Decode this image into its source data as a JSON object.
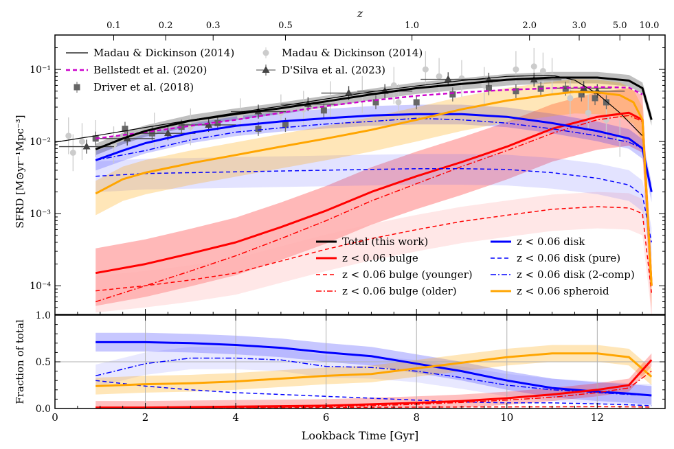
{
  "chart_data": [
    {
      "panel": "top",
      "type": "line",
      "ylabel": "SFRD [M⊙yr⁻¹Mpc⁻³]",
      "yscale": "log",
      "ylim": [
        4e-05,
        0.3
      ],
      "yticks": [
        0.0001,
        0.001,
        0.01,
        0.1
      ],
      "ytick_labels": [
        "10⁻⁴",
        "10⁻³",
        "10⁻²",
        "10⁻¹"
      ],
      "xlim": [
        0,
        13.5
      ],
      "top_axis": {
        "label": "z",
        "ticks": [
          {
            "t": 1.3,
            "label": "0.1"
          },
          {
            "t": 2.45,
            "label": "0.2"
          },
          {
            "t": 3.5,
            "label": "0.3"
          },
          {
            "t": 5.1,
            "label": "0.5"
          },
          {
            "t": 7.9,
            "label": "1.0"
          },
          {
            "t": 10.5,
            "label": "2.0"
          },
          {
            "t": 11.6,
            "label": "3.0"
          },
          {
            "t": 12.5,
            "label": "5.0"
          },
          {
            "t": 13.15,
            "label": "10.0"
          }
        ]
      },
      "series": [
        {
          "name": "Madau & Dickinson (2014)",
          "style": "fit",
          "color": "#000000",
          "x": [
            0,
            1,
            2,
            3,
            4,
            5,
            6,
            7,
            8,
            9,
            10,
            11,
            11.5,
            12,
            12.5,
            13
          ],
          "y": [
            0.0098,
            0.0123,
            0.0157,
            0.0198,
            0.025,
            0.031,
            0.039,
            0.049,
            0.059,
            0.07,
            0.08,
            0.083,
            0.071,
            0.046,
            0.025,
            0.012
          ]
        },
        {
          "name": "Bellstedt et al. (2020)",
          "style": "dashed",
          "color": "#cc00cc",
          "x": [
            0.9,
            2,
            3,
            4,
            5,
            6,
            7,
            8,
            9,
            10,
            11,
            12,
            12.7,
            13
          ],
          "y": [
            0.011,
            0.0135,
            0.0165,
            0.02,
            0.025,
            0.031,
            0.037,
            0.043,
            0.048,
            0.052,
            0.055,
            0.057,
            0.056,
            0.045
          ]
        },
        {
          "name": "Total (this work)",
          "style": "thick",
          "color": "#000000",
          "x": [
            0.9,
            1.5,
            2,
            3,
            4,
            5,
            6,
            7,
            8,
            9,
            10,
            11,
            12,
            12.7,
            13,
            13.2
          ],
          "y": [
            0.0078,
            0.011,
            0.014,
            0.0195,
            0.024,
            0.029,
            0.036,
            0.045,
            0.055,
            0.063,
            0.072,
            0.077,
            0.077,
            0.07,
            0.055,
            0.02
          ]
        },
        {
          "name": "z < 0.06 bulge",
          "style": "thick",
          "color": "#ff0000",
          "x": [
            0.9,
            2,
            3,
            4,
            5,
            6,
            7,
            8,
            9,
            10,
            11,
            12,
            12.7,
            13,
            13.2
          ],
          "y": [
            0.00015,
            0.0002,
            0.00028,
            0.0004,
            0.00065,
            0.0011,
            0.002,
            0.0033,
            0.0052,
            0.0085,
            0.015,
            0.022,
            0.025,
            0.02,
            0.0001
          ]
        },
        {
          "name": "z < 0.06 bulge (younger)",
          "style": "dashed",
          "color": "#ff0000",
          "x": [
            0.9,
            2,
            3,
            4,
            5,
            6,
            7,
            8,
            9,
            10,
            11,
            12,
            12.7,
            13,
            13.2
          ],
          "y": [
            8.5e-05,
            0.0001,
            0.00012,
            0.00015,
            0.00022,
            0.00032,
            0.00045,
            0.0006,
            0.00078,
            0.00095,
            0.00115,
            0.00125,
            0.0012,
            0.001,
            8e-05
          ]
        },
        {
          "name": "z < 0.06 bulge (older)",
          "style": "dashdot",
          "color": "#ff0000",
          "x": [
            0.9,
            2,
            3,
            4,
            5,
            6,
            7,
            8,
            9,
            10,
            11,
            12,
            12.7,
            13,
            13.2
          ],
          "y": [
            6e-05,
            0.0001,
            0.00016,
            0.00026,
            0.00045,
            0.0008,
            0.0015,
            0.0026,
            0.0045,
            0.0075,
            0.013,
            0.02,
            0.023,
            0.019,
            0.0001
          ]
        },
        {
          "name": "z < 0.06 disk",
          "style": "thick",
          "color": "#0000ff",
          "x": [
            0.9,
            1.5,
            2,
            3,
            4,
            5,
            6,
            7,
            8,
            9,
            10,
            11,
            12,
            12.7,
            13,
            13.2
          ],
          "y": [
            0.0055,
            0.0075,
            0.0095,
            0.0132,
            0.0165,
            0.019,
            0.021,
            0.023,
            0.024,
            0.024,
            0.022,
            0.018,
            0.014,
            0.011,
            0.008,
            0.002
          ]
        },
        {
          "name": "z < 0.06 disk (pure)",
          "style": "dashed",
          "color": "#0000ff",
          "x": [
            0.9,
            2,
            3,
            4,
            5,
            6,
            7,
            8,
            9,
            10,
            11,
            12,
            12.7,
            13,
            13.2
          ],
          "y": [
            0.0033,
            0.0036,
            0.0037,
            0.0038,
            0.0039,
            0.004,
            0.0041,
            0.0042,
            0.0042,
            0.0041,
            0.0037,
            0.0031,
            0.0025,
            0.0018,
            0.0004
          ]
        },
        {
          "name": "z < 0.06 disk (2-comp)",
          "style": "dashdot",
          "color": "#0000ff",
          "x": [
            0.9,
            2,
            3,
            4,
            5,
            6,
            7,
            8,
            9,
            10,
            11,
            12,
            12.7,
            13,
            13.2
          ],
          "y": [
            0.0055,
            0.0075,
            0.0105,
            0.0135,
            0.0155,
            0.0175,
            0.019,
            0.021,
            0.02,
            0.018,
            0.015,
            0.012,
            0.0098,
            0.008,
            0.002
          ]
        },
        {
          "name": "z < 0.06 spheroid",
          "style": "thick",
          "color": "#ffa500",
          "x": [
            0.9,
            1.5,
            2,
            3,
            4,
            5,
            6,
            7,
            8,
            9,
            10,
            11,
            11.5,
            12,
            12.5,
            12.8,
            13,
            13.2
          ],
          "y": [
            0.0019,
            0.003,
            0.0037,
            0.005,
            0.0065,
            0.0085,
            0.011,
            0.0145,
            0.02,
            0.028,
            0.037,
            0.045,
            0.049,
            0.048,
            0.044,
            0.035,
            0.02,
            0.0001
          ]
        }
      ],
      "observations": [
        {
          "name": "Madau & Dickinson (2014)",
          "marker": "circle",
          "color": "#cccccc",
          "x": [
            0.3,
            0.4,
            0.6,
            0.9,
            1.3,
            2.2,
            3.0,
            4.1,
            5.0,
            5.5,
            6.1,
            6.8,
            7.5,
            7.6,
            8.2,
            8.5,
            9.0,
            9.5,
            10.2,
            10.6,
            10.8,
            11.0,
            11.4,
            11.8,
            12.2,
            12.5
          ],
          "y": [
            0.012,
            0.007,
            0.01,
            0.011,
            0.009,
            0.014,
            0.016,
            0.022,
            0.025,
            0.028,
            0.038,
            0.045,
            0.06,
            0.035,
            0.1,
            0.08,
            0.075,
            0.06,
            0.1,
            0.11,
            0.095,
            0.08,
            0.04,
            0.025,
            0.02,
            0.011
          ]
        },
        {
          "name": "Driver et al. (2018)",
          "marker": "square",
          "color": "#666666",
          "x": [
            0.9,
            1.55,
            2.15,
            2.8,
            3.6,
            4.5,
            5.1,
            5.95,
            7.1,
            8.0,
            8.8,
            9.6,
            10.2,
            10.75,
            11.3,
            11.65,
            11.95,
            12.2
          ],
          "y": [
            0.011,
            0.015,
            0.013,
            0.016,
            0.018,
            0.015,
            0.017,
            0.027,
            0.035,
            0.035,
            0.045,
            0.055,
            0.05,
            0.054,
            0.054,
            0.045,
            0.04,
            0.035
          ]
        },
        {
          "name": "D'Silva et al. (2023)",
          "marker": "triangle",
          "color": "#444444",
          "x": [
            0.7,
            1.6,
            2.5,
            3.4,
            4.5,
            5.6,
            6.5,
            7.3,
            8.7,
            9.6,
            10.6,
            11.7,
            12.0
          ],
          "y": [
            0.0085,
            0.011,
            0.013,
            0.017,
            0.026,
            0.033,
            0.047,
            0.05,
            0.073,
            0.072,
            0.072,
            0.055,
            0.05
          ]
        }
      ],
      "legend_left": [
        {
          "label": "Madau & Dickinson (2014)",
          "symbol": "line-black"
        },
        {
          "label": "Bellstedt et al. (2020)",
          "symbol": "dashed-magenta"
        },
        {
          "label": "Driver et al. (2018)",
          "symbol": "square"
        }
      ],
      "legend_mid": [
        {
          "label": "Madau & Dickinson (2014)",
          "symbol": "circle"
        },
        {
          "label": "D'Silva et al. (2023)",
          "symbol": "triangle"
        }
      ],
      "legend_bottom": [
        {
          "label": "Total (this work)",
          "series": "Total (this work)"
        },
        {
          "label": "z < 0.06 bulge",
          "series": "z < 0.06 bulge"
        },
        {
          "label": "z < 0.06 bulge (younger)",
          "series": "z < 0.06 bulge (younger)"
        },
        {
          "label": "z < 0.06 bulge (older)",
          "series": "z < 0.06 bulge (older)"
        },
        {
          "label": "z < 0.06 disk",
          "series": "z < 0.06 disk"
        },
        {
          "label": "z < 0.06 disk (pure)",
          "series": "z < 0.06 disk (pure)"
        },
        {
          "label": "z < 0.06 disk (2-comp)",
          "series": "z < 0.06 disk (2-comp)"
        },
        {
          "label": "z < 0.06 spheroid",
          "series": "z < 0.06 spheroid"
        }
      ]
    },
    {
      "panel": "bottom",
      "type": "line",
      "ylabel": "Fraction of total",
      "xlabel": "Lookback Time [Gyr]",
      "xlim": [
        0,
        13.5
      ],
      "ylim": [
        0,
        1
      ],
      "xticks": [
        0,
        2,
        4,
        6,
        8,
        10,
        12
      ],
      "yticks": [
        0.0,
        0.5,
        1.0
      ],
      "ytick_labels": [
        "0.0",
        "0.5",
        "1.0"
      ],
      "reference_line": 0.5,
      "series": [
        {
          "name": "disk",
          "style": "thick",
          "color": "#0000ff",
          "x": [
            0.9,
            2,
            3,
            4,
            5,
            6,
            7,
            8,
            9,
            10,
            11,
            12,
            12.7,
            13.2
          ],
          "y": [
            0.71,
            0.71,
            0.7,
            0.68,
            0.65,
            0.6,
            0.56,
            0.48,
            0.4,
            0.3,
            0.22,
            0.18,
            0.16,
            0.14
          ]
        },
        {
          "name": "disk (2-comp)",
          "style": "dashdot",
          "color": "#0000ff",
          "x": [
            0.9,
            2,
            3,
            4,
            5,
            6,
            7,
            8,
            9,
            10,
            11,
            12,
            12.7,
            13.2
          ],
          "y": [
            0.35,
            0.48,
            0.54,
            0.54,
            0.52,
            0.45,
            0.44,
            0.4,
            0.33,
            0.25,
            0.2,
            0.17,
            0.15,
            0.14
          ]
        },
        {
          "name": "disk (pure)",
          "style": "dashed",
          "color": "#0000ff",
          "x": [
            0.9,
            2,
            3,
            4,
            5,
            6,
            7,
            8,
            9,
            10,
            11,
            12,
            12.7,
            13.2
          ],
          "y": [
            0.3,
            0.24,
            0.2,
            0.17,
            0.15,
            0.13,
            0.11,
            0.09,
            0.07,
            0.06,
            0.06,
            0.05,
            0.04,
            0.03
          ]
        },
        {
          "name": "spheroid",
          "style": "thick",
          "color": "#ffa500",
          "x": [
            0.9,
            2,
            3,
            4,
            5,
            6,
            7,
            8,
            9,
            10,
            11,
            12,
            12.7,
            13.2
          ],
          "y": [
            0.24,
            0.26,
            0.27,
            0.29,
            0.32,
            0.35,
            0.37,
            0.43,
            0.49,
            0.55,
            0.59,
            0.59,
            0.55,
            0.34
          ]
        },
        {
          "name": "bulge",
          "style": "thick",
          "color": "#ff0000",
          "x": [
            0.9,
            2,
            3,
            4,
            5,
            6,
            7,
            8,
            9,
            10,
            11,
            12,
            12.7,
            13.2
          ],
          "y": [
            0.01,
            0.01,
            0.015,
            0.02,
            0.025,
            0.03,
            0.045,
            0.06,
            0.08,
            0.11,
            0.15,
            0.2,
            0.25,
            0.52
          ]
        },
        {
          "name": "bulge (younger)",
          "style": "dashed",
          "color": "#ff0000",
          "x": [
            0.9,
            2,
            3,
            4,
            5,
            6,
            7,
            8,
            9,
            10,
            11,
            12,
            12.7,
            13.2
          ],
          "y": [
            0.012,
            0.01,
            0.01,
            0.01,
            0.01,
            0.012,
            0.013,
            0.015,
            0.016,
            0.017,
            0.018,
            0.019,
            0.018,
            0.015
          ]
        },
        {
          "name": "bulge (older)",
          "style": "dashdot",
          "color": "#ff0000",
          "x": [
            0.9,
            2,
            3,
            4,
            5,
            6,
            7,
            8,
            9,
            10,
            11,
            12,
            12.7,
            13.2
          ],
          "y": [
            0.008,
            0.009,
            0.01,
            0.012,
            0.015,
            0.02,
            0.03,
            0.045,
            0.065,
            0.09,
            0.12,
            0.17,
            0.22,
            0.4
          ]
        }
      ]
    }
  ]
}
